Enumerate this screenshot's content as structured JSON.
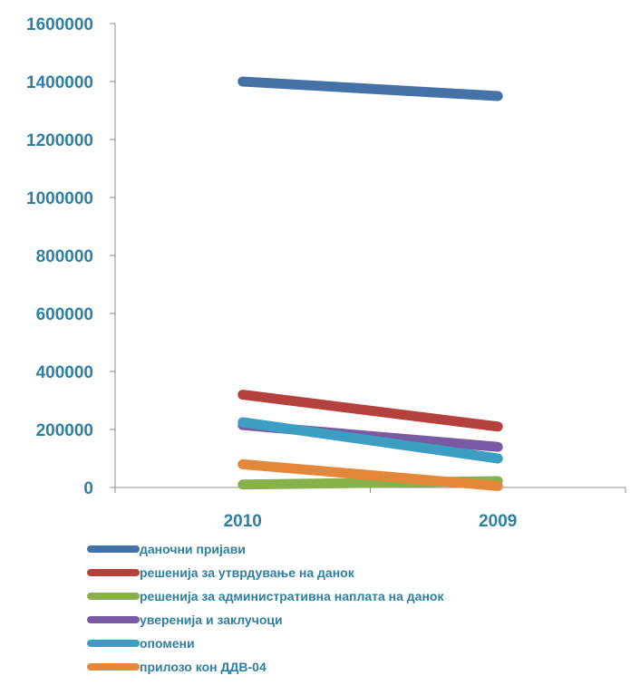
{
  "chart_data": {
    "type": "line",
    "categories": [
      "2010",
      "2009"
    ],
    "ylim": [
      0,
      1600000
    ],
    "yticks": [
      0,
      200000,
      400000,
      600000,
      800000,
      1000000,
      1200000,
      1400000,
      1600000
    ],
    "grid": false,
    "legend_position": "bottom",
    "series": [
      {
        "name": "даночни пријави",
        "values": [
          1400000,
          1350000
        ],
        "color": "#4472a8"
      },
      {
        "name": "решенија за утврдување на данок",
        "values": [
          320000,
          210000
        ],
        "color": "#b5413f"
      },
      {
        "name": "решенија за административна наплата на данок",
        "values": [
          10000,
          22000
        ],
        "color": "#88b04b"
      },
      {
        "name": "уверенија и заклучоци",
        "values": [
          215000,
          140000
        ],
        "color": "#7a5ba3"
      },
      {
        "name": "опомени",
        "values": [
          225000,
          100000
        ],
        "color": "#3b9ec2"
      },
      {
        "name": "прилозо кон ДДВ-04",
        "values": [
          80000,
          5000
        ],
        "color": "#e5873a"
      }
    ]
  }
}
